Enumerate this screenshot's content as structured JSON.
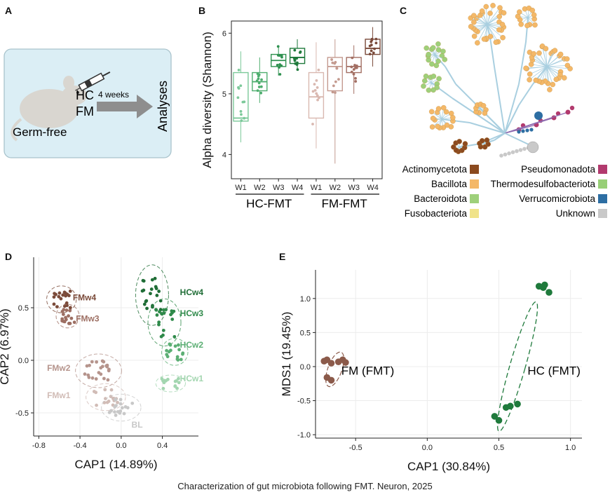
{
  "panels": {
    "a": "A",
    "b": "B",
    "c": "C",
    "d": "D",
    "e": "E"
  },
  "caption": "Characterization of gut microbiota following FMT. Neuron, 2025",
  "panel_a": {
    "mouse_label": "Germ-free",
    "hc": "HC",
    "fm": "FM",
    "arrow_label": "4 weeks",
    "outcome": "Analyses",
    "colors": {
      "box": "#dbeef5",
      "border": "#a9c3cc",
      "arrow": "#8e8e8e",
      "mouse": "#d9d6d0"
    }
  },
  "panel_c": {
    "legend_left": [
      {
        "label": "Actinomycetota",
        "color": "#8b4a1f"
      },
      {
        "label": "Bacillota",
        "color": "#f4b868"
      },
      {
        "label": "Bacteroidota",
        "color": "#9ed07a"
      },
      {
        "label": "Fusobacteriota",
        "color": "#f0e38a"
      }
    ],
    "legend_right": [
      {
        "label": "Pseudomonadota",
        "color": "#b23a6e"
      },
      {
        "label": "Thermodesulfobacteriota",
        "color": "#98cf77"
      },
      {
        "label": "Verrucomicrobiota",
        "color": "#2d6ea3"
      },
      {
        "label": "Unknown",
        "color": "#c9c9c9"
      }
    ],
    "edge_color": "#a9cfe0"
  },
  "chart_data": [
    {
      "id": "B",
      "type": "box",
      "ylabel": "Alpha diversity (Shannon)",
      "ylim": [
        3.6,
        6.2
      ],
      "yticks": [
        4,
        5,
        6
      ],
      "groups": [
        {
          "name": "HC-FMT",
          "color": "#2e8b4e",
          "boxes": [
            {
              "label": "W1",
              "q1": 4.55,
              "median": 4.6,
              "q3": 5.35,
              "whisker": [
                4.2,
                5.7
              ],
              "color": "#7cc99a"
            },
            {
              "label": "W2",
              "q1": 5.05,
              "median": 5.2,
              "q3": 5.35,
              "whisker": [
                4.85,
                5.6
              ],
              "color": "#4fae6f"
            },
            {
              "label": "W3",
              "q1": 5.45,
              "median": 5.55,
              "q3": 5.65,
              "whisker": [
                5.3,
                5.8
              ],
              "color": "#2f9150"
            },
            {
              "label": "W4",
              "q1": 5.5,
              "median": 5.6,
              "q3": 5.75,
              "whisker": [
                5.4,
                5.9
              ],
              "color": "#1f7a3c"
            }
          ]
        },
        {
          "name": "FM-FMT",
          "color": "#7a4a3a",
          "boxes": [
            {
              "label": "W1",
              "q1": 4.6,
              "median": 4.95,
              "q3": 5.35,
              "whisker": [
                4.1,
                5.85
              ],
              "color": "#d9b8b0"
            },
            {
              "label": "W2",
              "q1": 5.05,
              "median": 5.45,
              "q3": 5.6,
              "whisker": [
                3.85,
                5.9
              ],
              "color": "#c49a8f"
            },
            {
              "label": "W3",
              "q1": 5.35,
              "median": 5.45,
              "q3": 5.6,
              "whisker": [
                5.0,
                5.8
              ],
              "color": "#a36f63"
            },
            {
              "label": "W4",
              "q1": 5.65,
              "median": 5.75,
              "q3": 5.9,
              "whisker": [
                5.45,
                6.1
              ],
              "color": "#7a4a3a"
            }
          ]
        }
      ]
    },
    {
      "id": "D",
      "type": "scatter",
      "xlabel": "CAP1 (14.89%)",
      "ylabel": "CAP2 (6.97%)",
      "xlim": [
        -0.85,
        0.75
      ],
      "ylim": [
        -0.72,
        0.98
      ],
      "xticks": [
        -0.8,
        -0.4,
        0.0,
        0.4
      ],
      "yticks": [
        -0.5,
        0.0,
        0.5
      ],
      "series": [
        {
          "name": "FMw4",
          "color": "#7b4b3a",
          "center": [
            -0.58,
            0.58
          ],
          "spread": [
            0.09,
            0.08
          ],
          "n": 20,
          "label_at": [
            -0.47,
            0.57
          ]
        },
        {
          "name": "FMw3",
          "color": "#9d6f63",
          "center": [
            -0.52,
            0.42
          ],
          "spread": [
            0.07,
            0.07
          ],
          "n": 16,
          "label_at": [
            -0.44,
            0.37
          ]
        },
        {
          "name": "FMw2",
          "color": "#b5948c",
          "center": [
            -0.22,
            -0.1
          ],
          "spread": [
            0.14,
            0.1
          ],
          "n": 22,
          "label_at": [
            -0.72,
            -0.1
          ]
        },
        {
          "name": "FMw1",
          "color": "#d1bcb6",
          "center": [
            -0.15,
            -0.35
          ],
          "spread": [
            0.12,
            0.08
          ],
          "n": 16,
          "label_at": [
            -0.72,
            -0.36
          ]
        },
        {
          "name": "BL",
          "color": "#c8c8c8",
          "center": [
            0.0,
            -0.45
          ],
          "spread": [
            0.12,
            0.08
          ],
          "n": 18,
          "label_at": [
            0.1,
            -0.64
          ]
        },
        {
          "name": "HCw4",
          "color": "#1f6d36",
          "center": [
            0.3,
            0.62
          ],
          "spread": [
            0.1,
            0.18
          ],
          "n": 22,
          "label_at": [
            0.8,
            0.62
          ]
        },
        {
          "name": "HCw3",
          "color": "#2f8a4a",
          "center": [
            0.42,
            0.36
          ],
          "spread": [
            0.1,
            0.14
          ],
          "n": 18,
          "label_at": [
            0.8,
            0.42
          ]
        },
        {
          "name": "HCw2",
          "color": "#5caf74",
          "center": [
            0.52,
            0.08
          ],
          "spread": [
            0.08,
            0.08
          ],
          "n": 16,
          "label_at": [
            0.8,
            0.12
          ]
        },
        {
          "name": "HCw1",
          "color": "#a3d6b0",
          "center": [
            0.48,
            -0.22
          ],
          "spread": [
            0.09,
            0.05
          ],
          "n": 14,
          "label_at": [
            0.8,
            -0.2
          ]
        }
      ]
    },
    {
      "id": "E",
      "type": "scatter",
      "xlabel": "CAP1 (30.84%)",
      "ylabel": "MDS1 (19.45%)",
      "xlim": [
        -0.78,
        1.08
      ],
      "ylim": [
        -1.05,
        1.42
      ],
      "xticks": [
        -0.5,
        0.0,
        0.5,
        1.0
      ],
      "yticks": [
        -1.0,
        -0.5,
        0.0,
        0.5,
        1.0
      ],
      "series": [
        {
          "name": "FM (FMT)",
          "color": "#8b5a4a",
          "label_at": [
            -0.6,
            -0.12
          ],
          "points": [
            [
              -0.72,
              0.08
            ],
            [
              -0.7,
              0.1
            ],
            [
              -0.67,
              0.05
            ],
            [
              -0.62,
              0.07
            ],
            [
              -0.59,
              0.1
            ],
            [
              -0.57,
              0.06
            ],
            [
              -0.7,
              -0.16
            ],
            [
              -0.67,
              -0.2
            ]
          ]
        },
        {
          "name": "HC (FMT)",
          "color": "#1f7a3c",
          "label_at": [
            0.7,
            -0.12
          ],
          "points": [
            [
              0.78,
              1.18
            ],
            [
              0.81,
              1.16
            ],
            [
              0.82,
              1.2
            ],
            [
              0.85,
              1.09
            ],
            [
              0.47,
              -0.73
            ],
            [
              0.5,
              -0.79
            ],
            [
              0.55,
              -0.6
            ],
            [
              0.58,
              -0.58
            ],
            [
              0.63,
              -0.55
            ]
          ]
        }
      ]
    }
  ]
}
